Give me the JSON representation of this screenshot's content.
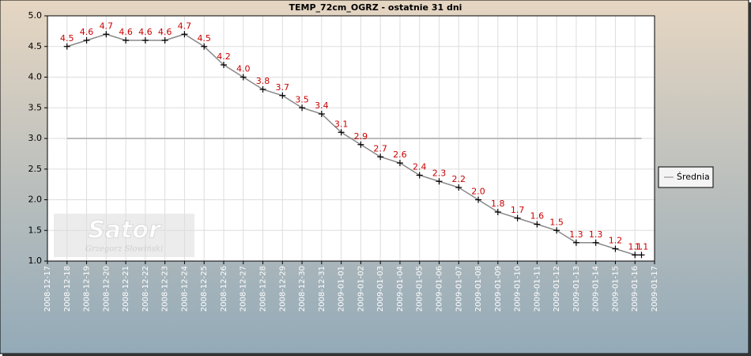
{
  "chart_data": {
    "type": "line",
    "title": "TEMP_72cm_OGRZ - ostatnie 31 dni",
    "watermark": [
      "Sator",
      "Grzegorz Słowiński"
    ],
    "x": [
      "2008-12-18",
      "2008-12-19",
      "2008-12-20",
      "2008-12-21",
      "2008-12-22",
      "2008-12-23",
      "2008-12-24",
      "2008-12-25",
      "2008-12-26",
      "2008-12-27",
      "2008-12-28",
      "2008-12-29",
      "2008-12-30",
      "2008-12-31",
      "2009-01-01",
      "2009-01-02",
      "2009-01-03",
      "2009-01-04",
      "2009-01-05",
      "2009-01-06",
      "2009-01-07",
      "2009-01-08",
      "2009-01-09",
      "2009-01-10",
      "2009-01-11",
      "2009-01-12",
      "2009-01-13",
      "2009-01-14",
      "2009-01-15",
      "2009-01-16",
      "2009-01-16T08:00"
    ],
    "series": [
      {
        "name": "TEMP_72cm_OGRZ",
        "color": "#888888",
        "marker_color": "#000000",
        "label_color": "#cc0000",
        "values": [
          4.5,
          4.6,
          4.7,
          4.6,
          4.6,
          4.6,
          4.7,
          4.5,
          4.2,
          4.0,
          3.8,
          3.7,
          3.5,
          3.4,
          3.1,
          2.9,
          2.7,
          2.6,
          2.4,
          2.3,
          2.2,
          2.0,
          1.8,
          1.7,
          1.6,
          1.5,
          1.3,
          1.3,
          1.2,
          1.1,
          1.1
        ],
        "value_labels": [
          "4.5",
          "4.6",
          "4.7",
          "4.6",
          "4.6",
          "4.6",
          "4.7",
          "4.5",
          "4.2",
          "4.0",
          "3.8",
          "3.7",
          "3.5",
          "3.4",
          "3.1",
          "2.9",
          "2.7",
          "2.6",
          "2.4",
          "2.3",
          "2.2",
          "2.0",
          "1.8",
          "1.7",
          "1.6",
          "1.5",
          "1.3",
          "1.3",
          "1.2",
          "1.1",
          "1.1"
        ]
      }
    ],
    "average": {
      "name": "Średnia",
      "value": 3,
      "color": "#bbbbbb"
    },
    "xlim": [
      "2008-12-17",
      "2009-01-17"
    ],
    "xticks": [
      "2008-12-17",
      "2008-12-18",
      "2008-12-19",
      "2008-12-20",
      "2008-12-21",
      "2008-12-22",
      "2008-12-23",
      "2008-12-24",
      "2008-12-25",
      "2008-12-26",
      "2008-12-27",
      "2008-12-28",
      "2008-12-29",
      "2008-12-30",
      "2008-12-31",
      "2009-01-01",
      "2009-01-02",
      "2009-01-03",
      "2009-01-04",
      "2009-01-05",
      "2009-01-06",
      "2009-01-07",
      "2009-01-08",
      "2009-01-09",
      "2009-01-10",
      "2009-01-11",
      "2009-01-12",
      "2009-01-13",
      "2009-01-14",
      "2009-01-15",
      "2009-01-16",
      "2009-01-17"
    ],
    "ylim": [
      1,
      5
    ],
    "yticks": [
      {
        "value": 1,
        "label": "1.0"
      },
      1.5,
      {
        "value": 2,
        "label": "2.0"
      },
      2.5,
      {
        "value": 3,
        "label": "3.0"
      },
      3.5,
      {
        "value": 4,
        "label": "4.0"
      },
      4.5,
      {
        "value": 5,
        "label": "5.0"
      }
    ],
    "grid": true,
    "legend": "right"
  }
}
